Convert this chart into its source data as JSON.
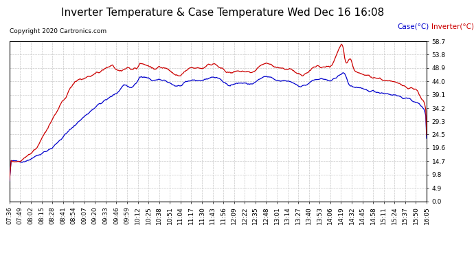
{
  "title": "Inverter Temperature & Case Temperature Wed Dec 16 16:08",
  "copyright": "Copyright 2020 Cartronics.com",
  "legend_case": "Case(°C)",
  "legend_inverter": "Inverter(°C)",
  "yticks": [
    0.0,
    4.9,
    9.8,
    14.7,
    19.6,
    24.5,
    29.3,
    34.2,
    39.1,
    44.0,
    48.9,
    53.8,
    58.7
  ],
  "ylim": [
    0.0,
    58.7
  ],
  "bg_color": "#ffffff",
  "grid_color": "#c8c8c8",
  "case_color": "#0000cc",
  "inverter_color": "#cc0000",
  "title_fontsize": 11,
  "tick_fontsize": 6.5,
  "copyright_fontsize": 6.5,
  "legend_fontsize": 7.5,
  "xtick_labels": [
    "07:36",
    "07:49",
    "08:02",
    "08:15",
    "08:28",
    "08:41",
    "08:54",
    "09:07",
    "09:20",
    "09:33",
    "09:46",
    "09:59",
    "10:12",
    "10:25",
    "10:38",
    "10:51",
    "11:04",
    "11:17",
    "11:30",
    "11:43",
    "11:56",
    "12:09",
    "12:22",
    "12:35",
    "12:48",
    "13:01",
    "13:14",
    "13:27",
    "13:40",
    "13:53",
    "14:06",
    "14:19",
    "14:32",
    "14:45",
    "14:58",
    "15:11",
    "15:24",
    "15:37",
    "15:50",
    "16:05"
  ]
}
